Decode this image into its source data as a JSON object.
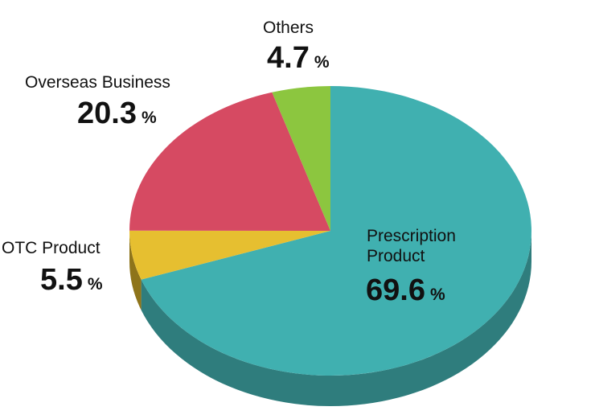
{
  "chart_data": {
    "type": "pie",
    "style": "3d",
    "unit": "%",
    "slices": [
      {
        "label_lines": [
          "Prescription",
          "Product"
        ],
        "value": 69.6,
        "value_text": "69.6",
        "color": "#40b0b0",
        "side_color": "#2f7d7d"
      },
      {
        "label_lines": [
          "OTC Product"
        ],
        "value": 5.5,
        "value_text": "5.5",
        "color": "#e6bf30",
        "side_color": "#8e741a"
      },
      {
        "label_lines": [
          "Overseas Business"
        ],
        "value": 20.3,
        "value_text": "20.3",
        "color": "#d64a62",
        "side_color": "#8e2f3f"
      },
      {
        "label_lines": [
          "Others"
        ],
        "value": 4.7,
        "value_text": "4.7",
        "color": "#8cc63f",
        "side_color": "#5c8a26"
      }
    ]
  }
}
